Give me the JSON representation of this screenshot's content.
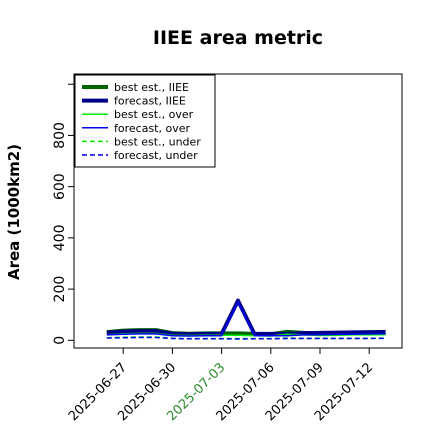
{
  "chart_data": {
    "type": "line",
    "title": "IIEE area metric",
    "xlabel": "",
    "ylabel": "Area (1000km2)",
    "ylim": [
      -30,
      1040
    ],
    "y_ticks": [
      0,
      200,
      400,
      600,
      800
    ],
    "x_range": [
      "2025-06-24",
      "2025-07-14"
    ],
    "x_ticks": [
      "2025-06-27",
      "2025-06-30",
      "2025-07-03",
      "2025-07-06",
      "2025-07-09",
      "2025-07-12"
    ],
    "highlight_tick": "2025-07-03",
    "highlight_color": "#2e8b2e",
    "grid": false,
    "legend_position": "top-left",
    "series": [
      {
        "name": "best est., IIEE",
        "color": "#006400",
        "style": "solid",
        "width": 4,
        "x": [
          "2025-06-26",
          "2025-06-27",
          "2025-06-28",
          "2025-06-29",
          "2025-06-30",
          "2025-07-01",
          "2025-07-02",
          "2025-07-03",
          "2025-07-04",
          "2025-07-05",
          "2025-07-06",
          "2025-07-07",
          "2025-07-08",
          "2025-07-09",
          "2025-07-10",
          "2025-07-11",
          "2025-07-12",
          "2025-07-13"
        ],
        "y": [
          32,
          38,
          40,
          40,
          28,
          26,
          27,
          27,
          27,
          25,
          24,
          33,
          29,
          27,
          28,
          29,
          29,
          31
        ]
      },
      {
        "name": "forecast, IIEE",
        "color": "#00008b",
        "style": "solid",
        "width": 4,
        "x": [
          "2025-06-26",
          "2025-06-27",
          "2025-06-28",
          "2025-06-29",
          "2025-06-30",
          "2025-07-01",
          "2025-07-02",
          "2025-07-03",
          "2025-07-04",
          "2025-07-05",
          "2025-07-06",
          "2025-07-07",
          "2025-07-08",
          "2025-07-09",
          "2025-07-10",
          "2025-07-11",
          "2025-07-12",
          "2025-07-13"
        ],
        "y": [
          30,
          34,
          36,
          36,
          26,
          24,
          25,
          25,
          155,
          25,
          25,
          25,
          28,
          29,
          30,
          31,
          32,
          33
        ]
      },
      {
        "name": "best est., over",
        "color": "#00ee00",
        "style": "solid",
        "width": 1.5,
        "x": [
          "2025-06-26",
          "2025-06-27",
          "2025-06-28",
          "2025-06-29",
          "2025-06-30",
          "2025-07-01",
          "2025-07-02",
          "2025-07-03",
          "2025-07-04",
          "2025-07-05",
          "2025-07-06",
          "2025-07-07",
          "2025-07-08",
          "2025-07-09",
          "2025-07-10",
          "2025-07-11",
          "2025-07-12",
          "2025-07-13"
        ],
        "y": [
          22,
          26,
          27,
          27,
          20,
          19,
          20,
          20,
          20,
          18,
          17,
          24,
          21,
          19,
          20,
          21,
          21,
          22
        ]
      },
      {
        "name": "forecast, over",
        "color": "#0000ee",
        "style": "solid",
        "width": 1.5,
        "x": [
          "2025-06-26",
          "2025-06-27",
          "2025-06-28",
          "2025-06-29",
          "2025-06-30",
          "2025-07-01",
          "2025-07-02",
          "2025-07-03",
          "2025-07-04",
          "2025-07-05",
          "2025-07-06",
          "2025-07-07",
          "2025-07-08",
          "2025-07-09",
          "2025-07-10",
          "2025-07-11",
          "2025-07-12",
          "2025-07-13"
        ],
        "y": [
          21,
          24,
          25,
          25,
          18,
          17,
          18,
          18,
          150,
          18,
          18,
          18,
          21,
          22,
          23,
          24,
          25,
          26
        ]
      },
      {
        "name": "best est., under",
        "color": "#00ee00",
        "style": "dashed",
        "width": 1.5,
        "x": [
          "2025-06-26",
          "2025-06-27",
          "2025-06-28",
          "2025-06-29",
          "2025-06-30",
          "2025-07-01",
          "2025-07-02",
          "2025-07-03",
          "2025-07-04",
          "2025-07-05",
          "2025-07-06",
          "2025-07-07",
          "2025-07-08",
          "2025-07-09",
          "2025-07-10",
          "2025-07-11",
          "2025-07-12",
          "2025-07-13"
        ],
        "y": [
          10,
          12,
          13,
          13,
          8,
          7,
          7,
          7,
          7,
          7,
          7,
          9,
          8,
          8,
          8,
          8,
          8,
          9
        ]
      },
      {
        "name": "forecast, under",
        "color": "#0000ee",
        "style": "dashed",
        "width": 1.5,
        "x": [
          "2025-06-26",
          "2025-06-27",
          "2025-06-28",
          "2025-06-29",
          "2025-06-30",
          "2025-07-01",
          "2025-07-02",
          "2025-07-03",
          "2025-07-04",
          "2025-07-05",
          "2025-07-06",
          "2025-07-07",
          "2025-07-08",
          "2025-07-09",
          "2025-07-10",
          "2025-07-11",
          "2025-07-12",
          "2025-07-13"
        ],
        "y": [
          9,
          10,
          11,
          11,
          7,
          6,
          6,
          6,
          5,
          6,
          6,
          7,
          7,
          7,
          7,
          7,
          7,
          8
        ]
      }
    ]
  }
}
